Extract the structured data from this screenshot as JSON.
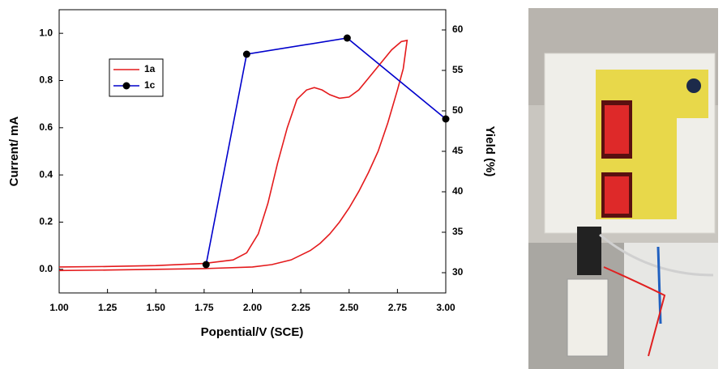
{
  "chart_data": {
    "type": "line",
    "xlabel": "Popential/V (SCE)",
    "ylabel": "Current/ mA",
    "y2label": "Yield (%)",
    "xlim": [
      1.0,
      3.0
    ],
    "xticks": [
      {
        "value": 1.0,
        "label": "1.00"
      },
      {
        "value": 1.25,
        "label": "1.25"
      },
      {
        "value": 1.5,
        "label": "1.50"
      },
      {
        "value": 1.75,
        "label": "1.75"
      },
      {
        "value": 2.0,
        "label": "2.00"
      },
      {
        "value": 2.25,
        "label": "2.25"
      },
      {
        "value": 2.5,
        "label": "2.50"
      },
      {
        "value": 2.75,
        "label": "2.75"
      },
      {
        "value": 3.0,
        "label": "3.00"
      }
    ],
    "ylim": [
      -0.1,
      1.1
    ],
    "yticks": [
      {
        "value": 0,
        "label": "0.0"
      },
      0.2,
      0.4,
      0.6,
      0.8,
      {
        "value": 1,
        "label": "1.0"
      }
    ],
    "y2lim": [
      27.5,
      62.5
    ],
    "y2ticks": [
      30,
      35,
      40,
      45,
      50,
      55,
      60
    ],
    "series": [
      {
        "name": "1a",
        "color": "#e41a1c",
        "markers": false,
        "x": [
          1.0,
          1.25,
          1.5,
          1.75,
          1.9,
          1.97,
          2.03,
          2.08,
          2.13,
          2.18,
          2.23,
          2.28,
          2.32,
          2.36,
          2.4,
          2.45,
          2.5,
          2.55,
          2.6,
          2.66,
          2.72,
          2.77,
          2.8,
          2.78,
          2.75,
          2.7,
          2.65,
          2.6,
          2.55,
          2.5,
          2.45,
          2.4,
          2.35,
          2.3,
          2.2,
          2.1,
          2.0,
          1.75,
          1.5,
          1.25,
          1.0
        ],
        "values": [
          0.01,
          0.012,
          0.016,
          0.025,
          0.04,
          0.07,
          0.15,
          0.28,
          0.45,
          0.6,
          0.72,
          0.76,
          0.77,
          0.76,
          0.74,
          0.725,
          0.73,
          0.76,
          0.81,
          0.87,
          0.93,
          0.965,
          0.97,
          0.85,
          0.76,
          0.62,
          0.5,
          0.41,
          0.33,
          0.26,
          0.2,
          0.15,
          0.11,
          0.08,
          0.04,
          0.02,
          0.01,
          0.003,
          0.0,
          -0.003,
          -0.005
        ]
      },
      {
        "name": "1c",
        "color": "#0000cc",
        "markers": true,
        "axis": "y2",
        "x": [
          1.76,
          1.97,
          2.49,
          3.0
        ],
        "values": [
          31,
          57,
          59,
          49
        ]
      }
    ]
  }
}
